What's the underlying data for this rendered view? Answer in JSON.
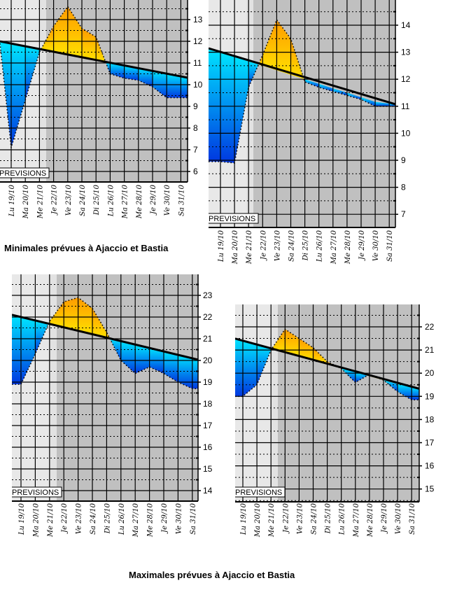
{
  "titles": {
    "min": "Minimales prévues à Ajaccio et Bastia",
    "max": "Maximales prévues à Ajaccio et Bastia"
  },
  "colors": {
    "light_bg": "#e6e6e6",
    "forecast_bg": "#c0c0c0",
    "above_top": "#ff9900",
    "above_bottom": "#ffdd00",
    "below_top": "#00e0ff",
    "below_bottom": "#0040e0"
  },
  "chart_data": [
    {
      "id": "min-ajaccio",
      "type": "area",
      "title": "Minimales prévues à Ajaccio",
      "label_box": "PREVISIONS",
      "categories": [
        "Lu 19/10",
        "Ma 20/10",
        "Me 21/10",
        "Je 22/10",
        "Ve 23/10",
        "Sa 24/10",
        "Di 25/10",
        "Lu 26/10",
        "Ma 27/10",
        "Me 28/10",
        "Je 29/10",
        "Ve 30/10",
        "Sa 31/10"
      ],
      "x": [
        0,
        1,
        2,
        3,
        4,
        5,
        6,
        7,
        8,
        9,
        10,
        11,
        12
      ],
      "series": [
        {
          "name": "forecast",
          "values": [
            7.1,
            9.3,
            11.5,
            12.7,
            13.6,
            12.6,
            12.2,
            10.5,
            10.3,
            10.2,
            9.9,
            9.4,
            9.4
          ]
        },
        {
          "name": "normal",
          "values": [
            11.9,
            11.78,
            11.65,
            11.52,
            11.4,
            11.27,
            11.14,
            11.0,
            10.88,
            10.76,
            10.63,
            10.5,
            10.38
          ]
        }
      ],
      "first_value": 11.9,
      "ylim": [
        5.5,
        14
      ],
      "yticks": [
        6,
        7,
        8,
        9,
        10,
        11,
        12,
        13
      ],
      "forecast_start_index": 2.5,
      "grid": true
    },
    {
      "id": "min-bastia",
      "type": "area",
      "title": "Minimales prévues à Bastia",
      "label_box": "PREVISIONS",
      "categories": [
        "Lu 19/10",
        "Ma 20/10",
        "Me 21/10",
        "Je 22/10",
        "Ve 23/10",
        "Sa 24/10",
        "Di 25/10",
        "Lu 26/10",
        "Ma 27/10",
        "Me 28/10",
        "Je 29/10",
        "Ve 30/10",
        "Sa 31/10"
      ],
      "x": [
        0,
        1,
        2,
        3,
        4,
        5,
        6,
        7,
        8,
        9,
        10,
        11,
        12
      ],
      "series": [
        {
          "name": "forecast",
          "values": [
            8.95,
            8.9,
            11.7,
            12.9,
            14.2,
            13.5,
            11.9,
            11.7,
            11.55,
            11.4,
            11.25,
            11.0,
            11.0
          ]
        },
        {
          "name": "normal",
          "values": [
            13.0,
            12.83,
            12.66,
            12.5,
            12.33,
            12.16,
            12.0,
            11.83,
            11.66,
            11.5,
            11.33,
            11.16,
            11.1
          ]
        }
      ],
      "ylim": [
        6.5,
        15
      ],
      "yticks": [
        7,
        8,
        9,
        10,
        11,
        12,
        13,
        14
      ],
      "forecast_start_index": 2.5,
      "grid": true
    },
    {
      "id": "max-ajaccio",
      "type": "area",
      "title": "Maximales prévues à Ajaccio",
      "label_box": "PREVISIONS",
      "categories": [
        "Lu 19/10",
        "Ma 20/10",
        "Me 21/10",
        "Je 22/10",
        "Ve 23/10",
        "Sa 24/10",
        "Di 25/10",
        "Lu 26/10",
        "Ma 27/10",
        "Me 28/10",
        "Je 29/10",
        "Ve 30/10",
        "Sa 31/10"
      ],
      "x": [
        0,
        1,
        2,
        3,
        4,
        5,
        6,
        7,
        8,
        9,
        10,
        11,
        12
      ],
      "series": [
        {
          "name": "forecast",
          "values": [
            18.9,
            20.3,
            21.8,
            22.7,
            22.9,
            22.4,
            21.3,
            20.0,
            19.4,
            19.7,
            19.4,
            19.0,
            18.7
          ]
        },
        {
          "name": "normal",
          "values": [
            22.0,
            21.84,
            21.68,
            21.53,
            21.37,
            21.21,
            21.05,
            20.89,
            20.73,
            20.58,
            20.42,
            20.26,
            20.1
          ]
        }
      ],
      "ylim": [
        13.5,
        24
      ],
      "yticks": [
        14,
        15,
        16,
        17,
        18,
        19,
        20,
        21,
        22,
        23
      ],
      "forecast_start_index": 2.5,
      "grid": true
    },
    {
      "id": "max-bastia",
      "type": "area",
      "title": "Maximales prévues à Bastia",
      "label_box": "PREVISIONS",
      "categories": [
        "Lu 19/10",
        "Ma 20/10",
        "Me 21/10",
        "Je 22/10",
        "Ve 23/10",
        "Sa 24/10",
        "Di 25/10",
        "Lu 26/10",
        "Ma 27/10",
        "Me 28/10",
        "Je 29/10",
        "Ve 30/10",
        "Sa 31/10"
      ],
      "x": [
        0,
        1,
        2,
        3,
        4,
        5,
        6,
        7,
        8,
        9,
        10,
        11,
        12
      ],
      "series": [
        {
          "name": "forecast",
          "values": [
            19.0,
            19.5,
            21.0,
            21.9,
            21.5,
            21.1,
            20.5,
            20.2,
            19.6,
            19.95,
            19.7,
            19.2,
            18.85
          ]
        },
        {
          "name": "normal",
          "values": [
            21.4,
            21.23,
            21.06,
            20.89,
            20.72,
            20.55,
            20.38,
            20.21,
            20.04,
            19.87,
            19.7,
            19.53,
            19.4
          ]
        }
      ],
      "ylim": [
        14.5,
        23
      ],
      "yticks": [
        15,
        16,
        17,
        18,
        19,
        20,
        21,
        22
      ],
      "forecast_start_index": 2.5,
      "grid": true
    }
  ]
}
